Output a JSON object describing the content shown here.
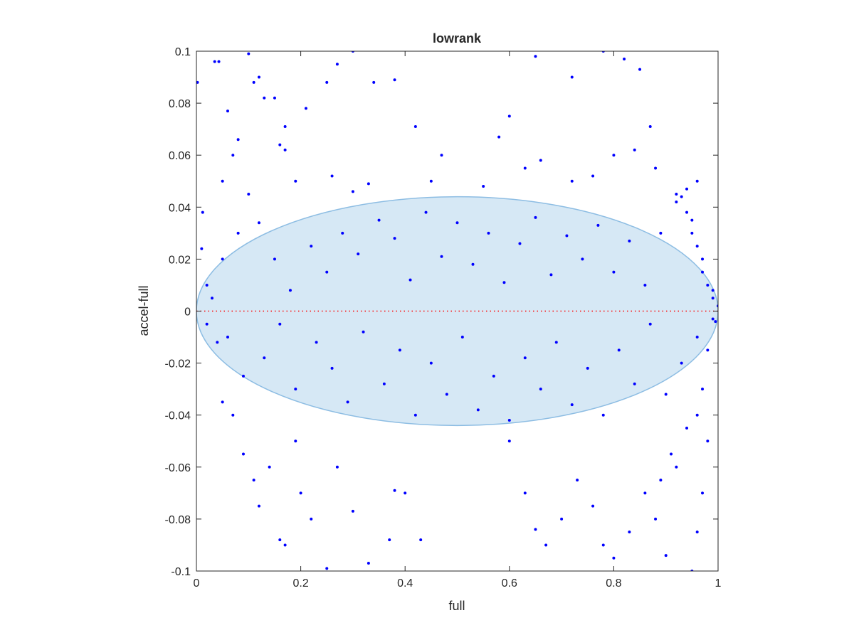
{
  "chart_data": {
    "type": "scatter",
    "title": "lowrank",
    "xlabel": "full",
    "ylabel": "accel-full",
    "xlim": [
      0,
      1
    ],
    "ylim": [
      -0.1,
      0.1
    ],
    "x_ticks": [
      0,
      0.2,
      0.4,
      0.6,
      0.8,
      1
    ],
    "x_tick_labels": [
      "0",
      "0.2",
      "0.4",
      "0.6",
      "0.8",
      "1"
    ],
    "y_ticks": [
      -0.1,
      -0.08,
      -0.06,
      -0.04,
      -0.02,
      0,
      0.02,
      0.04,
      0.06,
      0.08,
      0.1
    ],
    "y_tick_labels": [
      "-0.1",
      "-0.08",
      "-0.06",
      "-0.04",
      "-0.02",
      "0",
      "0.02",
      "0.04",
      "0.06",
      "0.08",
      "0.1"
    ],
    "grid": false,
    "reference_line": {
      "y": 0,
      "color": "#ff0000",
      "style": "dotted"
    },
    "ellipse": {
      "center": [
        0.5,
        0
      ],
      "x_radius": 0.5,
      "y_radius": 0.044,
      "fill": "#d6e8f5",
      "stroke": "#8dbde3"
    },
    "series": [
      {
        "color": "#0000ff",
        "points": [
          [
            0.002,
            0.088
          ],
          [
            0.012,
            0.038
          ],
          [
            0.035,
            0.096
          ],
          [
            0.043,
            0.096
          ],
          [
            0.1,
            0.099
          ],
          [
            0.11,
            0.088
          ],
          [
            0.12,
            0.09
          ],
          [
            0.13,
            0.082
          ],
          [
            0.15,
            0.082
          ],
          [
            0.17,
            0.071
          ],
          [
            0.21,
            0.078
          ],
          [
            0.25,
            0.088
          ],
          [
            0.27,
            0.095
          ],
          [
            0.3,
            0.1
          ],
          [
            0.34,
            0.088
          ],
          [
            0.38,
            0.089
          ],
          [
            0.42,
            0.071
          ],
          [
            0.47,
            0.06
          ],
          [
            0.58,
            0.067
          ],
          [
            0.6,
            0.075
          ],
          [
            0.65,
            0.098
          ],
          [
            0.72,
            0.09
          ],
          [
            0.78,
            0.1
          ],
          [
            0.82,
            0.097
          ],
          [
            0.85,
            0.093
          ],
          [
            0.87,
            0.071
          ],
          [
            0.06,
            0.077
          ],
          [
            0.08,
            0.066
          ],
          [
            0.05,
            0.05
          ],
          [
            0.07,
            0.06
          ],
          [
            0.1,
            0.045
          ],
          [
            0.16,
            0.064
          ],
          [
            0.17,
            0.062
          ],
          [
            0.19,
            0.05
          ],
          [
            0.26,
            0.052
          ],
          [
            0.3,
            0.046
          ],
          [
            0.33,
            0.049
          ],
          [
            0.45,
            0.05
          ],
          [
            0.55,
            0.048
          ],
          [
            0.63,
            0.055
          ],
          [
            0.66,
            0.058
          ],
          [
            0.72,
            0.05
          ],
          [
            0.76,
            0.052
          ],
          [
            0.8,
            0.06
          ],
          [
            0.84,
            0.062
          ],
          [
            0.88,
            0.055
          ],
          [
            0.92,
            0.045
          ],
          [
            0.94,
            0.047
          ],
          [
            0.96,
            0.05
          ],
          [
            0.01,
            0.024
          ],
          [
            0.02,
            0.01
          ],
          [
            0.03,
            0.005
          ],
          [
            0.05,
            0.02
          ],
          [
            0.08,
            0.03
          ],
          [
            0.12,
            0.034
          ],
          [
            0.15,
            0.02
          ],
          [
            0.18,
            0.008
          ],
          [
            0.22,
            0.025
          ],
          [
            0.25,
            0.015
          ],
          [
            0.28,
            0.03
          ],
          [
            0.31,
            0.022
          ],
          [
            0.35,
            0.035
          ],
          [
            0.38,
            0.028
          ],
          [
            0.41,
            0.012
          ],
          [
            0.44,
            0.038
          ],
          [
            0.47,
            0.021
          ],
          [
            0.5,
            0.034
          ],
          [
            0.53,
            0.018
          ],
          [
            0.56,
            0.03
          ],
          [
            0.59,
            0.011
          ],
          [
            0.62,
            0.026
          ],
          [
            0.65,
            0.036
          ],
          [
            0.68,
            0.014
          ],
          [
            0.71,
            0.029
          ],
          [
            0.74,
            0.02
          ],
          [
            0.77,
            0.033
          ],
          [
            0.8,
            0.015
          ],
          [
            0.83,
            0.027
          ],
          [
            0.86,
            0.01
          ],
          [
            0.89,
            0.03
          ],
          [
            0.92,
            0.042
          ],
          [
            0.95,
            0.035
          ],
          [
            0.97,
            0.02
          ],
          [
            0.99,
            0.008
          ],
          [
            0.02,
            -0.005
          ],
          [
            0.04,
            -0.012
          ],
          [
            0.06,
            -0.01
          ],
          [
            0.09,
            -0.025
          ],
          [
            0.13,
            -0.018
          ],
          [
            0.16,
            -0.005
          ],
          [
            0.19,
            -0.03
          ],
          [
            0.23,
            -0.012
          ],
          [
            0.26,
            -0.022
          ],
          [
            0.29,
            -0.035
          ],
          [
            0.32,
            -0.008
          ],
          [
            0.36,
            -0.028
          ],
          [
            0.39,
            -0.015
          ],
          [
            0.42,
            -0.04
          ],
          [
            0.45,
            -0.02
          ],
          [
            0.48,
            -0.032
          ],
          [
            0.51,
            -0.01
          ],
          [
            0.54,
            -0.038
          ],
          [
            0.57,
            -0.025
          ],
          [
            0.6,
            -0.042
          ],
          [
            0.63,
            -0.018
          ],
          [
            0.66,
            -0.03
          ],
          [
            0.69,
            -0.012
          ],
          [
            0.72,
            -0.036
          ],
          [
            0.75,
            -0.022
          ],
          [
            0.78,
            -0.04
          ],
          [
            0.81,
            -0.015
          ],
          [
            0.84,
            -0.028
          ],
          [
            0.87,
            -0.005
          ],
          [
            0.9,
            -0.032
          ],
          [
            0.93,
            -0.02
          ],
          [
            0.96,
            -0.01
          ],
          [
            0.99,
            -0.003
          ],
          [
            0.05,
            -0.035
          ],
          [
            0.07,
            -0.04
          ],
          [
            0.09,
            -0.055
          ],
          [
            0.11,
            -0.065
          ],
          [
            0.12,
            -0.075
          ],
          [
            0.14,
            -0.06
          ],
          [
            0.16,
            -0.088
          ],
          [
            0.17,
            -0.09
          ],
          [
            0.19,
            -0.05
          ],
          [
            0.2,
            -0.07
          ],
          [
            0.22,
            -0.08
          ],
          [
            0.25,
            -0.099
          ],
          [
            0.27,
            -0.06
          ],
          [
            0.3,
            -0.077
          ],
          [
            0.33,
            -0.097
          ],
          [
            0.37,
            -0.088
          ],
          [
            0.38,
            -0.069
          ],
          [
            0.4,
            -0.07
          ],
          [
            0.43,
            -0.088
          ],
          [
            0.6,
            -0.05
          ],
          [
            0.63,
            -0.07
          ],
          [
            0.65,
            -0.084
          ],
          [
            0.67,
            -0.09
          ],
          [
            0.7,
            -0.08
          ],
          [
            0.73,
            -0.065
          ],
          [
            0.76,
            -0.075
          ],
          [
            0.78,
            -0.09
          ],
          [
            0.8,
            -0.095
          ],
          [
            0.83,
            -0.085
          ],
          [
            0.86,
            -0.07
          ],
          [
            0.88,
            -0.08
          ],
          [
            0.9,
            -0.094
          ],
          [
            0.92,
            -0.06
          ],
          [
            0.95,
            -0.1
          ],
          [
            0.96,
            -0.085
          ],
          [
            0.97,
            -0.07
          ],
          [
            0.98,
            -0.05
          ],
          [
            0.93,
            0.044
          ],
          [
            0.94,
            0.038
          ],
          [
            0.95,
            0.03
          ],
          [
            0.96,
            0.025
          ],
          [
            0.97,
            0.015
          ],
          [
            0.98,
            0.01
          ],
          [
            0.99,
            0.005
          ],
          [
            1.0,
            0.002
          ],
          [
            0.995,
            -0.004
          ],
          [
            0.98,
            -0.015
          ],
          [
            0.97,
            -0.03
          ],
          [
            0.96,
            -0.04
          ],
          [
            0.94,
            -0.045
          ],
          [
            0.91,
            -0.055
          ],
          [
            0.89,
            -0.065
          ]
        ]
      }
    ]
  }
}
